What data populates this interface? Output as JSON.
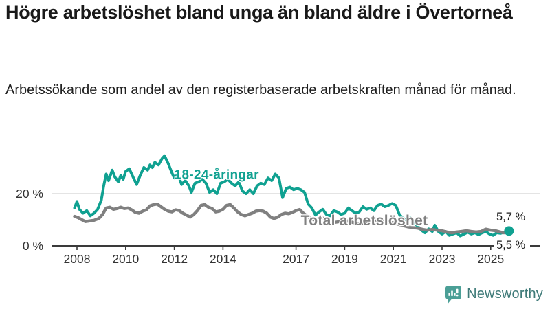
{
  "header": {
    "title": "Högre arbetslöshet bland unga än bland äldre i Övertorneå",
    "subtitle": "Arbetssökande som andel av den registerbaserade arbetskraften månad för månad."
  },
  "footer": {
    "brand": "Newsworthy"
  },
  "colors": {
    "young_line": "#10a191",
    "total_line": "#808080",
    "grid": "#dcdcdc",
    "axis": "#3a3a3a",
    "tick_label": "#333333",
    "end_label": "#1a1a1a",
    "logo_bubble": "#4b9f96",
    "logo_text": "#3e7a78"
  },
  "chart_data": {
    "type": "line",
    "title": "Högre arbetslöshet bland unga än bland äldre i Övertorneå",
    "subtitle": "Arbetssökande som andel av den registerbaserade arbetskraften månad för månad.",
    "unit": "%",
    "grid": "horizontal-20-only",
    "legend_position": "inline-labels",
    "x_range": [
      2007.8,
      2026.2
    ],
    "y_range": [
      0,
      36
    ],
    "x_tick_years": [
      2008,
      2010,
      2012,
      2014,
      2017,
      2019,
      2021,
      2023,
      2025
    ],
    "y_ticks": [
      {
        "value": 0,
        "label": "0 %"
      },
      {
        "value": 20,
        "label": "20 %"
      }
    ],
    "series": [
      {
        "name": "18-24-åringar",
        "color": "#10a191",
        "line_width": 4,
        "inline_label": {
          "text": "18-24-åringar",
          "x_year": 2012.0,
          "y_pct": 25.6,
          "font_size": 19
        },
        "end_value_label": "5,7 %",
        "end_dot": true,
        "points": [
          [
            2007.9,
            14.5
          ],
          [
            2008.0,
            17.0
          ],
          [
            2008.1,
            14.0
          ],
          [
            2008.25,
            12.5
          ],
          [
            2008.4,
            13.5
          ],
          [
            2008.55,
            11.5
          ],
          [
            2008.7,
            12.5
          ],
          [
            2008.85,
            14.0
          ],
          [
            2009.0,
            17.5
          ],
          [
            2009.1,
            23.0
          ],
          [
            2009.2,
            27.5
          ],
          [
            2009.3,
            25.0
          ],
          [
            2009.45,
            29.0
          ],
          [
            2009.55,
            26.5
          ],
          [
            2009.7,
            24.5
          ],
          [
            2009.8,
            27.0
          ],
          [
            2009.9,
            25.5
          ],
          [
            2010.0,
            28.5
          ],
          [
            2010.15,
            29.5
          ],
          [
            2010.3,
            26.5
          ],
          [
            2010.45,
            23.5
          ],
          [
            2010.6,
            27.0
          ],
          [
            2010.75,
            30.0
          ],
          [
            2010.9,
            29.0
          ],
          [
            2011.0,
            31.0
          ],
          [
            2011.1,
            30.0
          ],
          [
            2011.2,
            32.0
          ],
          [
            2011.35,
            31.0
          ],
          [
            2011.5,
            33.5
          ],
          [
            2011.6,
            34.5
          ],
          [
            2011.75,
            31.5
          ],
          [
            2011.9,
            28.0
          ],
          [
            2012.0,
            26.0
          ],
          [
            2012.15,
            27.5
          ],
          [
            2012.3,
            23.5
          ],
          [
            2012.45,
            25.0
          ],
          [
            2012.6,
            23.0
          ],
          [
            2012.7,
            20.5
          ],
          [
            2012.85,
            24.0
          ],
          [
            2013.0,
            24.5
          ],
          [
            2013.15,
            25.5
          ],
          [
            2013.3,
            24.0
          ],
          [
            2013.45,
            20.5
          ],
          [
            2013.6,
            21.5
          ],
          [
            2013.75,
            20.0
          ],
          [
            2013.9,
            24.0
          ],
          [
            2014.05,
            24.5
          ],
          [
            2014.2,
            25.5
          ],
          [
            2014.35,
            24.0
          ],
          [
            2014.5,
            23.0
          ],
          [
            2014.65,
            24.5
          ],
          [
            2014.8,
            21.0
          ],
          [
            2014.95,
            20.0
          ],
          [
            2015.1,
            21.5
          ],
          [
            2015.25,
            20.0
          ],
          [
            2015.4,
            23.0
          ],
          [
            2015.55,
            24.0
          ],
          [
            2015.7,
            23.5
          ],
          [
            2015.85,
            26.0
          ],
          [
            2016.0,
            25.0
          ],
          [
            2016.15,
            27.5
          ],
          [
            2016.3,
            26.0
          ],
          [
            2016.45,
            18.5
          ],
          [
            2016.6,
            22.0
          ],
          [
            2016.75,
            22.5
          ],
          [
            2016.9,
            21.5
          ],
          [
            2017.05,
            22.0
          ],
          [
            2017.2,
            21.5
          ],
          [
            2017.35,
            20.5
          ],
          [
            2017.5,
            16.0
          ],
          [
            2017.65,
            14.5
          ],
          [
            2017.8,
            11.8
          ],
          [
            2017.95,
            13.0
          ],
          [
            2018.1,
            14.0
          ],
          [
            2018.25,
            12.0
          ],
          [
            2018.4,
            11.5
          ],
          [
            2018.55,
            13.5
          ],
          [
            2018.7,
            13.0
          ],
          [
            2018.85,
            12.0
          ],
          [
            2019.0,
            12.5
          ],
          [
            2019.15,
            14.5
          ],
          [
            2019.3,
            13.5
          ],
          [
            2019.45,
            12.5
          ],
          [
            2019.6,
            13.0
          ],
          [
            2019.75,
            15.0
          ],
          [
            2019.9,
            14.0
          ],
          [
            2020.05,
            14.5
          ],
          [
            2020.2,
            13.5
          ],
          [
            2020.35,
            15.5
          ],
          [
            2020.5,
            16.0
          ],
          [
            2020.65,
            15.0
          ],
          [
            2020.8,
            15.5
          ],
          [
            2020.95,
            16.2
          ],
          [
            2021.1,
            15.5
          ],
          [
            2021.25,
            12.0
          ],
          [
            2021.4,
            10.5
          ],
          [
            2021.55,
            10.0
          ],
          [
            2021.7,
            10.8
          ],
          [
            2021.85,
            9.0
          ],
          [
            2022.0,
            7.5
          ],
          [
            2022.15,
            6.0
          ],
          [
            2022.3,
            5.0
          ],
          [
            2022.45,
            6.5
          ],
          [
            2022.6,
            5.5
          ],
          [
            2022.7,
            7.9
          ],
          [
            2022.85,
            5.5
          ],
          [
            2023.0,
            4.5
          ],
          [
            2023.15,
            5.5
          ],
          [
            2023.3,
            4.0
          ],
          [
            2023.45,
            4.5
          ],
          [
            2023.6,
            5.0
          ],
          [
            2023.75,
            3.8
          ],
          [
            2023.9,
            4.5
          ],
          [
            2024.05,
            5.2
          ],
          [
            2024.2,
            4.5
          ],
          [
            2024.35,
            5.0
          ],
          [
            2024.5,
            4.3
          ],
          [
            2024.65,
            5.0
          ],
          [
            2024.8,
            5.5
          ],
          [
            2024.95,
            4.5
          ],
          [
            2025.1,
            4.0
          ],
          [
            2025.25,
            5.0
          ],
          [
            2025.4,
            4.8
          ],
          [
            2025.55,
            5.2
          ],
          [
            2025.75,
            5.7
          ]
        ]
      },
      {
        "name": "Total arbetslöshet",
        "color": "#808080",
        "line_width": 4.5,
        "inline_label": {
          "text": "Total arbetslöshet",
          "x_year": 2017.2,
          "y_pct": 7.9,
          "font_size": 21
        },
        "end_value_label": "5,5 %",
        "end_dot": false,
        "points": [
          [
            2007.9,
            11.3
          ],
          [
            2008.05,
            10.8
          ],
          [
            2008.2,
            10.0
          ],
          [
            2008.35,
            9.3
          ],
          [
            2008.5,
            9.5
          ],
          [
            2008.7,
            9.8
          ],
          [
            2008.9,
            10.5
          ],
          [
            2009.05,
            12.0
          ],
          [
            2009.2,
            14.5
          ],
          [
            2009.35,
            14.8
          ],
          [
            2009.5,
            14.0
          ],
          [
            2009.65,
            14.3
          ],
          [
            2009.8,
            14.8
          ],
          [
            2009.95,
            14.3
          ],
          [
            2010.1,
            14.5
          ],
          [
            2010.25,
            13.8
          ],
          [
            2010.4,
            12.8
          ],
          [
            2010.55,
            12.5
          ],
          [
            2010.7,
            13.3
          ],
          [
            2010.85,
            13.8
          ],
          [
            2011.0,
            15.3
          ],
          [
            2011.15,
            15.8
          ],
          [
            2011.3,
            16.0
          ],
          [
            2011.45,
            15.0
          ],
          [
            2011.6,
            14.0
          ],
          [
            2011.75,
            13.3
          ],
          [
            2011.9,
            13.0
          ],
          [
            2012.05,
            13.8
          ],
          [
            2012.2,
            13.5
          ],
          [
            2012.35,
            12.5
          ],
          [
            2012.5,
            11.8
          ],
          [
            2012.65,
            11.0
          ],
          [
            2012.8,
            12.0
          ],
          [
            2012.95,
            13.5
          ],
          [
            2013.1,
            15.5
          ],
          [
            2013.25,
            15.8
          ],
          [
            2013.4,
            14.8
          ],
          [
            2013.55,
            14.3
          ],
          [
            2013.7,
            13.0
          ],
          [
            2013.85,
            13.3
          ],
          [
            2014.0,
            14.0
          ],
          [
            2014.15,
            15.5
          ],
          [
            2014.3,
            15.8
          ],
          [
            2014.45,
            14.5
          ],
          [
            2014.6,
            13.0
          ],
          [
            2014.75,
            12.0
          ],
          [
            2014.9,
            11.5
          ],
          [
            2015.05,
            12.0
          ],
          [
            2015.2,
            12.5
          ],
          [
            2015.35,
            13.3
          ],
          [
            2015.5,
            13.5
          ],
          [
            2015.65,
            13.3
          ],
          [
            2015.8,
            12.5
          ],
          [
            2015.95,
            11.0
          ],
          [
            2016.1,
            10.5
          ],
          [
            2016.25,
            11.0
          ],
          [
            2016.4,
            12.0
          ],
          [
            2016.55,
            12.5
          ],
          [
            2016.7,
            12.3
          ],
          [
            2016.85,
            12.8
          ],
          [
            2017.0,
            13.5
          ],
          [
            2017.15,
            13.9
          ],
          [
            2017.3,
            12.5
          ],
          [
            2017.45,
            11.5
          ],
          [
            2017.6,
            10.5
          ],
          [
            2017.75,
            10.0
          ],
          [
            2017.9,
            10.3
          ],
          [
            2018.05,
            10.8
          ],
          [
            2018.2,
            10.3
          ],
          [
            2018.4,
            9.5
          ],
          [
            2018.6,
            9.0
          ],
          [
            2018.8,
            9.3
          ],
          [
            2019.0,
            9.8
          ],
          [
            2019.2,
            9.3
          ],
          [
            2019.4,
            8.8
          ],
          [
            2019.6,
            8.5
          ],
          [
            2019.8,
            8.8
          ],
          [
            2020.0,
            9.3
          ],
          [
            2020.2,
            9.8
          ],
          [
            2020.4,
            10.0
          ],
          [
            2020.6,
            9.5
          ],
          [
            2020.8,
            9.0
          ],
          [
            2021.0,
            8.8
          ],
          [
            2021.2,
            8.3
          ],
          [
            2021.4,
            7.8
          ],
          [
            2021.6,
            7.3
          ],
          [
            2021.8,
            7.0
          ],
          [
            2022.0,
            6.8
          ],
          [
            2022.2,
            6.3
          ],
          [
            2022.4,
            6.0
          ],
          [
            2022.6,
            6.3
          ],
          [
            2022.8,
            6.0
          ],
          [
            2023.0,
            5.8
          ],
          [
            2023.2,
            5.3
          ],
          [
            2023.4,
            5.0
          ],
          [
            2023.6,
            5.3
          ],
          [
            2023.8,
            5.5
          ],
          [
            2024.0,
            5.8
          ],
          [
            2024.2,
            5.5
          ],
          [
            2024.4,
            5.3
          ],
          [
            2024.6,
            5.5
          ],
          [
            2024.8,
            6.4
          ],
          [
            2025.0,
            6.0
          ],
          [
            2025.2,
            5.8
          ],
          [
            2025.4,
            5.3
          ],
          [
            2025.55,
            5.0
          ],
          [
            2025.75,
            5.5
          ]
        ]
      }
    ]
  }
}
